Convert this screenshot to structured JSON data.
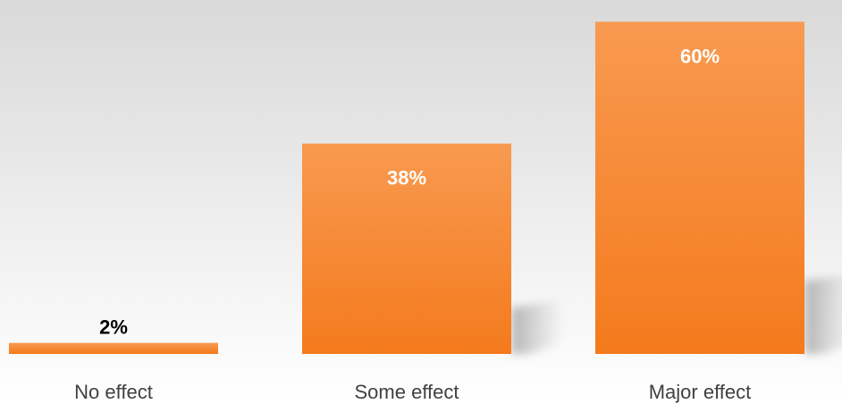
{
  "chart_data": {
    "type": "bar",
    "categories": [
      "No effect",
      "Some effect",
      "Major effect"
    ],
    "values": [
      2,
      38,
      60
    ],
    "value_labels": [
      "2%",
      "38%",
      "60%"
    ],
    "ylim": [
      0,
      62
    ],
    "grid": false,
    "bar_color_top": "#f89a50",
    "bar_color_bottom": "#f47a1c",
    "label_color_inside": "#ffffff",
    "label_color_outside": "#000000"
  }
}
